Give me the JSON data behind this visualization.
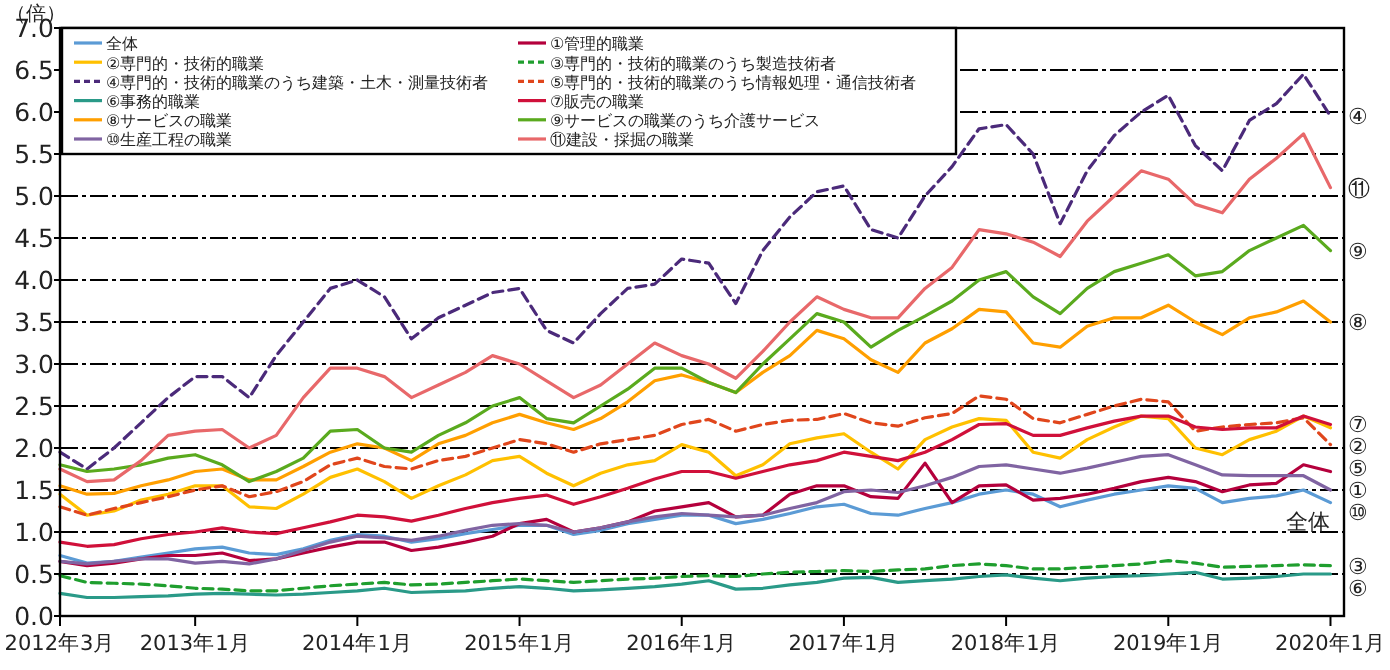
{
  "chart_data": {
    "type": "line",
    "ylabel": "（倍）",
    "x": [
      "2012-03",
      "2012-05",
      "2012-07",
      "2012-09",
      "2012-11",
      "2013-01",
      "2013-03",
      "2013-05",
      "2013-07",
      "2013-09",
      "2013-11",
      "2014-01",
      "2014-03",
      "2014-05",
      "2014-07",
      "2014-09",
      "2014-11",
      "2015-01",
      "2015-03",
      "2015-05",
      "2015-07",
      "2015-09",
      "2015-11",
      "2016-01",
      "2016-03",
      "2016-05",
      "2016-07",
      "2016-09",
      "2016-11",
      "2017-01",
      "2017-03",
      "2017-05",
      "2017-07",
      "2017-09",
      "2017-11",
      "2018-01",
      "2018-03",
      "2018-05",
      "2018-07",
      "2018-09",
      "2018-11",
      "2019-01",
      "2019-03",
      "2019-05",
      "2019-07",
      "2019-09",
      "2019-11",
      "2020-01"
    ],
    "xlim": [
      "2012-03",
      "2020-02"
    ],
    "xticks": [
      {
        "value": "2012-03",
        "label": "2012年3月"
      },
      {
        "value": "2013-01",
        "label": "2013年1月"
      },
      {
        "value": "2014-01",
        "label": "2014年1月"
      },
      {
        "value": "2015-01",
        "label": "2015年1月"
      },
      {
        "value": "2016-01",
        "label": "2016年1月"
      },
      {
        "value": "2017-01",
        "label": "2017年1月"
      },
      {
        "value": "2018-01",
        "label": "2018年1月"
      },
      {
        "value": "2019-01",
        "label": "2019年1月"
      },
      {
        "value": "2020-01",
        "label": "2020年1月"
      }
    ],
    "ylim": [
      0,
      7
    ],
    "yticks": [
      {
        "value": 0,
        "label": "0.0"
      },
      {
        "value": 0.5,
        "label": "0.5"
      },
      {
        "value": 1,
        "label": "1.0"
      },
      {
        "value": 1.5,
        "label": "1.5"
      },
      {
        "value": 2,
        "label": "2.0"
      },
      {
        "value": 2.5,
        "label": "2.5"
      },
      {
        "value": 3,
        "label": "3.0"
      },
      {
        "value": 3.5,
        "label": "3.5"
      },
      {
        "value": 4,
        "label": "4.0"
      },
      {
        "value": 4.5,
        "label": "4.5"
      },
      {
        "value": 5,
        "label": "5.0"
      },
      {
        "value": 5.5,
        "label": "5.5"
      },
      {
        "value": 6,
        "label": "6.0"
      },
      {
        "value": 6.5,
        "label": "6.5"
      },
      {
        "value": 7,
        "label": "7.0"
      }
    ],
    "grid": "y",
    "legend": "top left",
    "series": [
      {
        "name": "全体",
        "color": "#5b9bd5",
        "values": [
          0.72,
          0.63,
          0.65,
          0.7,
          0.75,
          0.8,
          0.82,
          0.75,
          0.73,
          0.8,
          0.9,
          0.97,
          0.95,
          0.88,
          0.92,
          0.98,
          1.03,
          1.08,
          1.08,
          0.97,
          1.02,
          1.1,
          1.15,
          1.2,
          1.2,
          1.1,
          1.15,
          1.22,
          1.3,
          1.33,
          1.22,
          1.2,
          1.28,
          1.35,
          1.45,
          1.5,
          1.45,
          1.3,
          1.38,
          1.45,
          1.5,
          1.55,
          1.52,
          1.35,
          1.4,
          1.43,
          1.5,
          1.35
        ]
      },
      {
        "name": "①管理的職業",
        "color": "#b4003c",
        "values": [
          0.65,
          0.6,
          0.63,
          0.68,
          0.72,
          0.72,
          0.75,
          0.66,
          0.68,
          0.75,
          0.82,
          0.88,
          0.88,
          0.78,
          0.82,
          0.88,
          0.95,
          1.1,
          1.15,
          1.0,
          1.05,
          1.12,
          1.25,
          1.3,
          1.35,
          1.18,
          1.2,
          1.45,
          1.55,
          1.55,
          1.42,
          1.4,
          1.82,
          1.35,
          1.55,
          1.56,
          1.38,
          1.4,
          1.45,
          1.52,
          1.6,
          1.65,
          1.6,
          1.48,
          1.56,
          1.58,
          1.8,
          1.72
        ]
      },
      {
        "name": "②専門的・技術的職業",
        "color": "#ffc000",
        "values": [
          1.45,
          1.2,
          1.25,
          1.38,
          1.45,
          1.55,
          1.55,
          1.3,
          1.28,
          1.45,
          1.65,
          1.75,
          1.6,
          1.4,
          1.55,
          1.68,
          1.85,
          1.9,
          1.7,
          1.55,
          1.7,
          1.8,
          1.85,
          2.04,
          1.95,
          1.67,
          1.8,
          2.05,
          2.12,
          2.17,
          1.95,
          1.75,
          2.1,
          2.25,
          2.35,
          2.33,
          1.95,
          1.88,
          2.1,
          2.25,
          2.38,
          2.35,
          2.0,
          1.92,
          2.1,
          2.2,
          2.38,
          2.24
        ]
      },
      {
        "name": "③専門的・技術的職業のうち製造技術者",
        "color": "#1f9e2e",
        "line_style": "dashed",
        "values": [
          0.48,
          0.4,
          0.39,
          0.38,
          0.36,
          0.33,
          0.32,
          0.3,
          0.3,
          0.33,
          0.36,
          0.38,
          0.4,
          0.37,
          0.38,
          0.4,
          0.42,
          0.44,
          0.42,
          0.4,
          0.42,
          0.44,
          0.45,
          0.47,
          0.48,
          0.47,
          0.5,
          0.52,
          0.53,
          0.54,
          0.53,
          0.55,
          0.56,
          0.6,
          0.62,
          0.6,
          0.56,
          0.56,
          0.58,
          0.6,
          0.62,
          0.66,
          0.63,
          0.58,
          0.59,
          0.6,
          0.61,
          0.6
        ]
      },
      {
        "name": "④専門的・技術的職業のうち建築・土木・測量技術者",
        "color": "#4b2a7a",
        "line_style": "dashed",
        "values": [
          1.95,
          1.75,
          2.0,
          2.3,
          2.6,
          2.85,
          2.85,
          2.6,
          3.1,
          3.5,
          3.9,
          4.0,
          3.8,
          3.3,
          3.55,
          3.7,
          3.85,
          3.9,
          3.4,
          3.25,
          3.6,
          3.9,
          3.95,
          4.25,
          4.2,
          3.72,
          4.35,
          4.75,
          5.05,
          5.12,
          4.6,
          4.5,
          5.0,
          5.35,
          5.8,
          5.85,
          5.5,
          4.67,
          5.3,
          5.72,
          6.0,
          6.2,
          5.6,
          5.3,
          5.9,
          6.1,
          6.45,
          5.95
        ]
      },
      {
        "name": "⑤専門的・技術的職業のうち情報処理・通信技術者",
        "color": "#e0461c",
        "line_style": "dashed",
        "values": [
          1.3,
          1.2,
          1.28,
          1.35,
          1.42,
          1.5,
          1.55,
          1.42,
          1.48,
          1.6,
          1.8,
          1.88,
          1.78,
          1.75,
          1.85,
          1.9,
          2.0,
          2.1,
          2.05,
          1.95,
          2.05,
          2.1,
          2.15,
          2.28,
          2.34,
          2.2,
          2.28,
          2.33,
          2.34,
          2.41,
          2.3,
          2.26,
          2.36,
          2.41,
          2.62,
          2.58,
          2.35,
          2.3,
          2.4,
          2.5,
          2.58,
          2.55,
          2.2,
          2.25,
          2.28,
          2.3,
          2.36,
          2.04
        ]
      },
      {
        "name": "⑥事務的職業",
        "color": "#2a9a88",
        "values": [
          0.27,
          0.22,
          0.22,
          0.23,
          0.24,
          0.26,
          0.27,
          0.26,
          0.25,
          0.26,
          0.28,
          0.3,
          0.33,
          0.28,
          0.29,
          0.3,
          0.33,
          0.35,
          0.33,
          0.3,
          0.31,
          0.33,
          0.35,
          0.38,
          0.42,
          0.32,
          0.33,
          0.37,
          0.4,
          0.45,
          0.46,
          0.4,
          0.42,
          0.44,
          0.47,
          0.49,
          0.45,
          0.42,
          0.45,
          0.47,
          0.48,
          0.5,
          0.52,
          0.44,
          0.45,
          0.47,
          0.5,
          0.5
        ]
      },
      {
        "name": "⑦販売の職業",
        "color": "#d0103a",
        "values": [
          0.88,
          0.83,
          0.85,
          0.92,
          0.97,
          1.0,
          1.05,
          1.0,
          0.98,
          1.05,
          1.12,
          1.2,
          1.18,
          1.13,
          1.2,
          1.28,
          1.35,
          1.4,
          1.44,
          1.33,
          1.42,
          1.52,
          1.63,
          1.72,
          1.72,
          1.64,
          1.72,
          1.8,
          1.85,
          1.95,
          1.9,
          1.85,
          1.95,
          2.1,
          2.28,
          2.29,
          2.15,
          2.15,
          2.24,
          2.32,
          2.38,
          2.38,
          2.25,
          2.22,
          2.24,
          2.24,
          2.38,
          2.28
        ]
      },
      {
        "name": "⑧サービスの職業",
        "color": "#ff9f00",
        "values": [
          1.55,
          1.45,
          1.46,
          1.55,
          1.62,
          1.72,
          1.75,
          1.62,
          1.62,
          1.78,
          1.95,
          2.05,
          2.0,
          1.85,
          2.05,
          2.15,
          2.3,
          2.4,
          2.3,
          2.22,
          2.35,
          2.55,
          2.8,
          2.87,
          2.78,
          2.66,
          2.9,
          3.1,
          3.4,
          3.3,
          3.05,
          2.9,
          3.25,
          3.42,
          3.65,
          3.62,
          3.25,
          3.2,
          3.45,
          3.55,
          3.55,
          3.7,
          3.5,
          3.35,
          3.55,
          3.62,
          3.75,
          3.5
        ]
      },
      {
        "name": "⑨サービスの職業のうち介護サービス",
        "color": "#5aaa1e",
        "values": [
          1.8,
          1.72,
          1.75,
          1.8,
          1.88,
          1.92,
          1.8,
          1.6,
          1.72,
          1.88,
          2.2,
          2.22,
          2.0,
          1.95,
          2.15,
          2.3,
          2.5,
          2.6,
          2.35,
          2.3,
          2.5,
          2.7,
          2.95,
          2.95,
          2.78,
          2.66,
          3.0,
          3.3,
          3.6,
          3.5,
          3.2,
          3.4,
          3.57,
          3.75,
          4.0,
          4.1,
          3.8,
          3.6,
          3.9,
          4.1,
          4.2,
          4.3,
          4.05,
          4.1,
          4.35,
          4.5,
          4.65,
          4.35
        ]
      },
      {
        "name": "⑩生産工程の職業",
        "color": "#8064a2",
        "values": [
          0.65,
          0.62,
          0.65,
          0.68,
          0.68,
          0.63,
          0.65,
          0.62,
          0.68,
          0.78,
          0.88,
          0.95,
          0.93,
          0.9,
          0.95,
          1.02,
          1.08,
          1.1,
          1.08,
          1.0,
          1.05,
          1.12,
          1.18,
          1.22,
          1.2,
          1.18,
          1.2,
          1.28,
          1.35,
          1.48,
          1.5,
          1.47,
          1.55,
          1.65,
          1.78,
          1.8,
          1.75,
          1.7,
          1.76,
          1.83,
          1.9,
          1.92,
          1.8,
          1.68,
          1.67,
          1.67,
          1.67,
          1.5
        ]
      },
      {
        "name": "⑪建設・採掘の職業",
        "color": "#e8686a",
        "values": [
          1.75,
          1.6,
          1.62,
          1.85,
          2.15,
          2.2,
          2.22,
          2.0,
          2.15,
          2.6,
          2.95,
          2.95,
          2.85,
          2.6,
          2.75,
          2.9,
          3.1,
          3.0,
          2.8,
          2.6,
          2.75,
          3.0,
          3.25,
          3.1,
          3.0,
          2.83,
          3.15,
          3.5,
          3.8,
          3.65,
          3.55,
          3.55,
          3.9,
          4.15,
          4.6,
          4.55,
          4.45,
          4.28,
          4.7,
          5.0,
          5.3,
          5.2,
          4.9,
          4.8,
          5.2,
          5.45,
          5.74,
          5.1
        ]
      }
    ],
    "annotations": [
      {
        "text": "④",
        "x": "2020-01",
        "y": 5.95
      },
      {
        "text": "⑪",
        "x": "2020-01",
        "y": 5.1
      },
      {
        "text": "⑨",
        "x": "2020-01",
        "y": 4.35
      },
      {
        "text": "⑧",
        "x": "2020-01",
        "y": 3.5
      },
      {
        "text": "⑦",
        "x": "2020-01",
        "y": 2.28
      },
      {
        "text": "②",
        "x": "2020-01",
        "y": 2.24
      },
      {
        "text": "⑤",
        "x": "2020-01",
        "y": 2.04
      },
      {
        "text": "①",
        "x": "2020-01",
        "y": 1.72
      },
      {
        "text": "⑩",
        "x": "2020-01",
        "y": 1.5
      },
      {
        "text": "全体",
        "x": "2020-01",
        "y": 1.35
      },
      {
        "text": "③",
        "x": "2020-01",
        "y": 0.6
      },
      {
        "text": "⑥",
        "x": "2020-01",
        "y": 0.5
      }
    ]
  }
}
